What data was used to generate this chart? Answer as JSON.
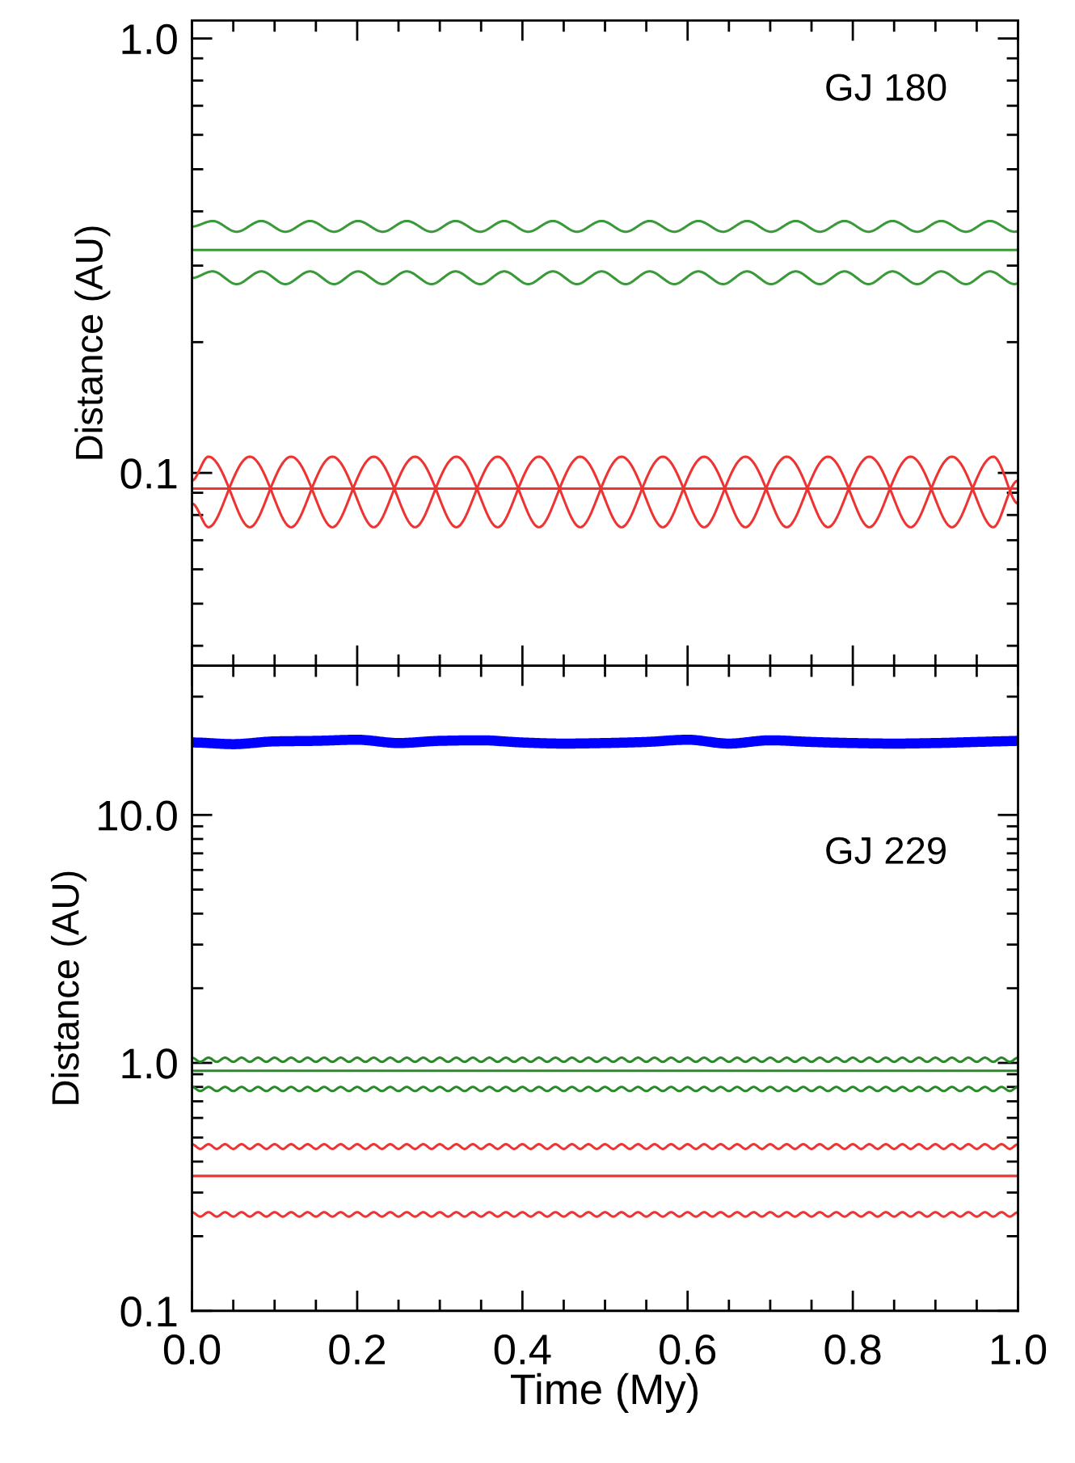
{
  "chart_data": [
    {
      "type": "line",
      "ylabel": "Distance (AU)",
      "log": "y",
      "ylim": [
        0.036,
        1.1
      ],
      "xlim": [
        0.0,
        1.0
      ],
      "yticks": [
        {
          "value": 0.1,
          "label": "0.1"
        },
        {
          "value": 1.0,
          "label": "1.0"
        }
      ],
      "xticks": [
        {
          "value": 0.0,
          "label": null
        },
        {
          "value": 0.2,
          "label": null
        },
        {
          "value": 0.4,
          "label": null
        },
        {
          "value": 0.6,
          "label": null
        },
        {
          "value": 0.8,
          "label": null
        },
        {
          "value": 1.0,
          "label": null
        }
      ],
      "tick_labels": "y",
      "grid": false,
      "legend": false,
      "marker": "none",
      "line_style": "solid",
      "annotations": [
        "GJ 180"
      ],
      "series": [
        {
          "color": "#3a9a3a",
          "x": [
            0,
            0.025,
            0.054,
            0.084,
            0.113,
            0.143,
            0.172,
            0.201,
            0.231,
            0.26,
            0.29,
            0.319,
            0.349,
            0.378,
            0.407,
            0.437,
            0.466,
            0.496,
            0.525,
            0.554,
            0.584,
            0.613,
            0.643,
            0.672,
            0.701,
            0.731,
            0.76,
            0.79,
            0.819,
            0.848,
            0.878,
            0.907,
            0.937,
            0.966,
            0.996,
            1.0
          ],
          "values": [
            0.369,
            0.38,
            0.359,
            0.38,
            0.359,
            0.38,
            0.359,
            0.38,
            0.359,
            0.38,
            0.359,
            0.38,
            0.359,
            0.38,
            0.359,
            0.38,
            0.359,
            0.38,
            0.359,
            0.38,
            0.359,
            0.38,
            0.359,
            0.38,
            0.359,
            0.38,
            0.359,
            0.38,
            0.359,
            0.38,
            0.359,
            0.38,
            0.359,
            0.38,
            0.359,
            0.36
          ]
        },
        {
          "color": "#3a9a3a",
          "x": [
            0,
            1.0
          ],
          "values": [
            0.326,
            0.326
          ]
        },
        {
          "color": "#3a9a3a",
          "x": [
            0,
            0.025,
            0.054,
            0.084,
            0.113,
            0.143,
            0.172,
            0.201,
            0.231,
            0.26,
            0.29,
            0.319,
            0.349,
            0.378,
            0.407,
            0.437,
            0.466,
            0.496,
            0.525,
            0.554,
            0.584,
            0.613,
            0.643,
            0.672,
            0.701,
            0.731,
            0.76,
            0.79,
            0.819,
            0.848,
            0.878,
            0.907,
            0.937,
            0.966,
            0.996,
            1.0
          ],
          "values": [
            0.281,
            0.291,
            0.272,
            0.291,
            0.272,
            0.291,
            0.272,
            0.291,
            0.272,
            0.291,
            0.272,
            0.291,
            0.272,
            0.291,
            0.272,
            0.291,
            0.272,
            0.291,
            0.272,
            0.291,
            0.272,
            0.291,
            0.272,
            0.291,
            0.272,
            0.291,
            0.272,
            0.291,
            0.272,
            0.291,
            0.272,
            0.291,
            0.272,
            0.291,
            0.272,
            0.273
          ]
        },
        {
          "color": "#ee3333",
          "x": [
            0,
            0.02,
            0.07,
            0.12,
            0.17,
            0.22,
            0.27,
            0.32,
            0.37,
            0.42,
            0.47,
            0.52,
            0.57,
            0.62,
            0.67,
            0.72,
            0.77,
            0.82,
            0.87,
            0.92,
            0.97,
            1.0
          ],
          "values": [
            0.096,
            0.109,
            0.075,
            0.109,
            0.075,
            0.109,
            0.075,
            0.109,
            0.075,
            0.109,
            0.075,
            0.109,
            0.075,
            0.109,
            0.075,
            0.109,
            0.075,
            0.109,
            0.075,
            0.109,
            0.075,
            0.096
          ]
        },
        {
          "color": "#ee3333",
          "x": [
            0,
            0.02,
            0.07,
            0.12,
            0.17,
            0.22,
            0.27,
            0.32,
            0.37,
            0.42,
            0.47,
            0.52,
            0.57,
            0.62,
            0.67,
            0.72,
            0.77,
            0.82,
            0.87,
            0.92,
            0.97,
            1.0
          ],
          "values": [
            0.085,
            0.075,
            0.109,
            0.075,
            0.109,
            0.075,
            0.109,
            0.075,
            0.109,
            0.075,
            0.109,
            0.075,
            0.109,
            0.075,
            0.109,
            0.075,
            0.109,
            0.075,
            0.109,
            0.075,
            0.109,
            0.085
          ]
        },
        {
          "color": "#ee3333",
          "x": [
            0,
            1.0
          ],
          "values": [
            0.092,
            0.092
          ]
        }
      ]
    },
    {
      "type": "line",
      "xlabel": "Time (My)",
      "ylabel": "Distance (AU)",
      "log": "y",
      "ylim": [
        0.1,
        40
      ],
      "xlim": [
        0.0,
        1.0
      ],
      "yticks": [
        {
          "value": 0.1,
          "label": "0.1"
        },
        {
          "value": 1.0,
          "label": "1.0"
        },
        {
          "value": 10.0,
          "label": "10.0"
        }
      ],
      "xticks": [
        {
          "value": 0.0,
          "label": "0.0"
        },
        {
          "value": 0.2,
          "label": "0.2"
        },
        {
          "value": 0.4,
          "label": "0.4"
        },
        {
          "value": 0.6,
          "label": "0.6"
        },
        {
          "value": 0.8,
          "label": "0.8"
        },
        {
          "value": 1.0,
          "label": "1.0"
        }
      ],
      "grid": false,
      "legend": false,
      "marker": "none",
      "line_style": "solid",
      "annotations": [
        "GJ 229"
      ],
      "x": [
        0,
        0.01,
        0.02,
        0.03,
        0.04,
        0.05,
        0.06,
        0.07,
        0.08,
        0.09,
        0.1,
        0.11,
        0.12,
        0.13,
        0.14,
        0.15,
        0.16,
        0.17,
        0.18,
        0.19,
        0.2,
        0.21,
        0.22,
        0.23,
        0.24,
        0.25,
        0.26,
        0.27,
        0.28,
        0.29,
        0.3,
        0.31,
        0.32,
        0.33,
        0.34,
        0.35,
        0.36,
        0.37,
        0.38,
        0.39,
        0.4,
        0.41,
        0.42,
        0.43,
        0.44,
        0.45,
        0.46,
        0.47,
        0.48,
        0.49,
        0.5,
        0.51,
        0.52,
        0.53,
        0.54,
        0.55,
        0.56,
        0.57,
        0.58,
        0.59,
        0.6,
        0.61,
        0.62,
        0.63,
        0.64,
        0.65,
        0.66,
        0.67,
        0.68,
        0.69,
        0.7,
        0.71,
        0.72,
        0.73,
        0.74,
        0.75,
        0.76,
        0.77,
        0.78,
        0.79,
        0.8,
        0.81,
        0.82,
        0.83,
        0.84,
        0.85,
        0.86,
        0.87,
        0.88,
        0.89,
        0.9,
        0.91,
        0.92,
        0.93,
        0.94,
        0.95,
        0.96,
        0.97,
        0.98,
        0.99,
        1.0
      ],
      "series": [
        {
          "color": "#0000ff",
          "x": [
            0,
            0.05,
            0.1,
            0.15,
            0.2,
            0.25,
            0.3,
            0.35,
            0.4,
            0.45,
            0.5,
            0.55,
            0.6,
            0.65,
            0.7,
            0.75,
            0.8,
            0.85,
            0.9,
            0.95,
            1.0
          ],
          "values": [
            19.6,
            19.3,
            19.8,
            19.9,
            20.1,
            19.5,
            19.9,
            20.0,
            19.6,
            19.4,
            19.5,
            19.7,
            20.1,
            19.4,
            20.0,
            19.7,
            19.5,
            19.4,
            19.5,
            19.7,
            19.9
          ]
        },
        {
          "color": "#2a8a2a",
          "values": [
            1.05,
            1.01,
            1.05,
            1.01,
            1.05,
            1.01,
            1.05,
            1.01,
            1.05,
            1.01,
            1.05,
            1.01,
            1.05,
            1.01,
            1.05,
            1.01,
            1.05,
            1.01,
            1.05,
            1.01,
            1.05,
            1.01,
            1.05,
            1.01,
            1.05,
            1.01,
            1.05,
            1.01,
            1.05,
            1.01,
            1.05,
            1.01,
            1.05,
            1.01,
            1.05,
            1.01,
            1.05,
            1.01,
            1.05,
            1.01,
            1.05,
            1.01,
            1.05,
            1.01,
            1.05,
            1.01,
            1.05,
            1.01,
            1.05,
            1.01,
            1.05,
            1.01,
            1.05,
            1.01,
            1.05,
            1.01,
            1.05,
            1.01,
            1.05,
            1.01,
            1.05,
            1.01,
            1.05,
            1.01,
            1.05,
            1.01,
            1.05,
            1.01,
            1.05,
            1.01,
            1.05,
            1.01,
            1.05,
            1.01,
            1.05,
            1.01,
            1.05,
            1.01,
            1.05,
            1.01,
            1.05,
            1.01,
            1.05,
            1.01,
            1.05,
            1.01,
            1.05,
            1.01,
            1.05,
            1.01,
            1.05,
            1.01,
            1.05,
            1.01,
            1.05,
            1.01,
            1.05,
            1.01,
            1.05,
            1.01,
            1.05
          ]
        },
        {
          "color": "#2a8a2a",
          "x": [
            0,
            1.0
          ],
          "values": [
            0.93,
            0.93
          ]
        },
        {
          "color": "#2a8a2a",
          "values": [
            0.8,
            0.77,
            0.8,
            0.77,
            0.8,
            0.77,
            0.8,
            0.77,
            0.8,
            0.77,
            0.8,
            0.77,
            0.8,
            0.77,
            0.8,
            0.77,
            0.8,
            0.77,
            0.8,
            0.77,
            0.8,
            0.77,
            0.8,
            0.77,
            0.8,
            0.77,
            0.8,
            0.77,
            0.8,
            0.77,
            0.8,
            0.77,
            0.8,
            0.77,
            0.8,
            0.77,
            0.8,
            0.77,
            0.8,
            0.77,
            0.8,
            0.77,
            0.8,
            0.77,
            0.8,
            0.77,
            0.8,
            0.77,
            0.8,
            0.77,
            0.8,
            0.77,
            0.8,
            0.77,
            0.8,
            0.77,
            0.8,
            0.77,
            0.8,
            0.77,
            0.8,
            0.77,
            0.8,
            0.77,
            0.8,
            0.77,
            0.8,
            0.77,
            0.8,
            0.77,
            0.8,
            0.77,
            0.8,
            0.77,
            0.8,
            0.77,
            0.8,
            0.77,
            0.8,
            0.77,
            0.8,
            0.77,
            0.8,
            0.77,
            0.8,
            0.77,
            0.8,
            0.77,
            0.8,
            0.77,
            0.8,
            0.77,
            0.8,
            0.77,
            0.8,
            0.77,
            0.8,
            0.77,
            0.8,
            0.77,
            0.8
          ]
        },
        {
          "color": "#ee3333",
          "values": [
            0.47,
            0.45,
            0.47,
            0.45,
            0.47,
            0.45,
            0.47,
            0.45,
            0.47,
            0.45,
            0.47,
            0.45,
            0.47,
            0.45,
            0.47,
            0.45,
            0.47,
            0.45,
            0.47,
            0.45,
            0.47,
            0.45,
            0.47,
            0.45,
            0.47,
            0.45,
            0.47,
            0.45,
            0.47,
            0.45,
            0.47,
            0.45,
            0.47,
            0.45,
            0.47,
            0.45,
            0.47,
            0.45,
            0.47,
            0.45,
            0.47,
            0.45,
            0.47,
            0.45,
            0.47,
            0.45,
            0.47,
            0.45,
            0.47,
            0.45,
            0.47,
            0.45,
            0.47,
            0.45,
            0.47,
            0.45,
            0.47,
            0.45,
            0.47,
            0.45,
            0.47,
            0.45,
            0.47,
            0.45,
            0.47,
            0.45,
            0.47,
            0.45,
            0.47,
            0.45,
            0.47,
            0.45,
            0.47,
            0.45,
            0.47,
            0.45,
            0.47,
            0.45,
            0.47,
            0.45,
            0.47,
            0.45,
            0.47,
            0.45,
            0.47,
            0.45,
            0.47,
            0.45,
            0.47,
            0.45,
            0.47,
            0.45,
            0.47,
            0.45,
            0.47,
            0.45,
            0.47,
            0.45,
            0.47,
            0.45,
            0.47
          ]
        },
        {
          "color": "#ee3333",
          "x": [
            0,
            1.0
          ],
          "values": [
            0.35,
            0.35
          ]
        },
        {
          "color": "#ee3333",
          "values": [
            0.25,
            0.24,
            0.25,
            0.24,
            0.25,
            0.24,
            0.25,
            0.24,
            0.25,
            0.24,
            0.25,
            0.24,
            0.25,
            0.24,
            0.25,
            0.24,
            0.25,
            0.24,
            0.25,
            0.24,
            0.25,
            0.24,
            0.25,
            0.24,
            0.25,
            0.24,
            0.25,
            0.24,
            0.25,
            0.24,
            0.25,
            0.24,
            0.25,
            0.24,
            0.25,
            0.24,
            0.25,
            0.24,
            0.25,
            0.24,
            0.25,
            0.24,
            0.25,
            0.24,
            0.25,
            0.24,
            0.25,
            0.24,
            0.25,
            0.24,
            0.25,
            0.24,
            0.25,
            0.24,
            0.25,
            0.24,
            0.25,
            0.24,
            0.25,
            0.24,
            0.25,
            0.24,
            0.25,
            0.24,
            0.25,
            0.24,
            0.25,
            0.24,
            0.25,
            0.24,
            0.25,
            0.24,
            0.25,
            0.24,
            0.25,
            0.24,
            0.25,
            0.24,
            0.25,
            0.24,
            0.25,
            0.24,
            0.25,
            0.24,
            0.25,
            0.24,
            0.25,
            0.24,
            0.25,
            0.24,
            0.25,
            0.24,
            0.25,
            0.24,
            0.25,
            0.24,
            0.25,
            0.24,
            0.25,
            0.24,
            0.25
          ]
        }
      ]
    }
  ]
}
